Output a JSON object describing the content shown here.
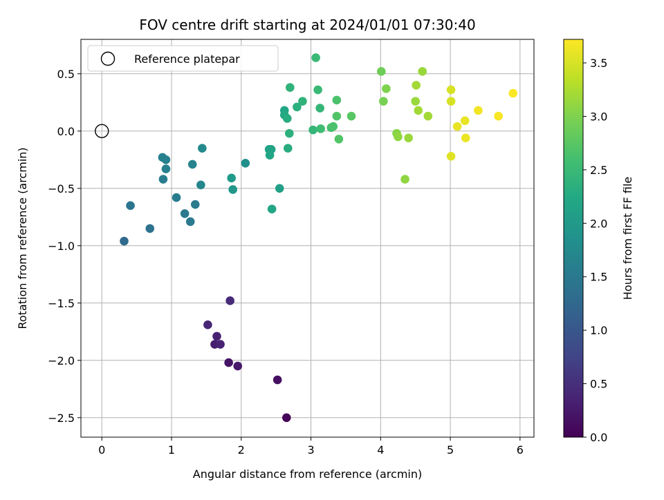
{
  "chart_data": {
    "type": "scatter",
    "title": "FOV centre drift starting at 2024/01/01 07:30:40",
    "xlabel": "Angular distance from reference (arcmin)",
    "ylabel": "Rotation from reference (arcmin)",
    "xlim": [
      -0.3,
      6.2
    ],
    "ylim": [
      -2.67,
      0.8
    ],
    "xticks": [
      0,
      1,
      2,
      3,
      4,
      5,
      6
    ],
    "yticks": [
      -2.5,
      -2.0,
      -1.5,
      -1.0,
      -0.5,
      0.0,
      0.5
    ],
    "grid": true,
    "legend": {
      "placement": "top-left",
      "entries": [
        "Reference platepar"
      ]
    },
    "reference_point": {
      "x": 0,
      "y": 0,
      "label": "Reference platepar"
    },
    "colorbar": {
      "label": "Hours from first FF file",
      "colormap": "viridis",
      "range": [
        0,
        3.72
      ],
      "ticks": [
        0.0,
        0.5,
        1.0,
        1.5,
        2.0,
        2.5,
        3.0,
        3.5
      ]
    },
    "points": [
      {
        "x": 2.65,
        "y": -2.5,
        "c": 0.05
      },
      {
        "x": 2.52,
        "y": -2.17,
        "c": 0.15
      },
      {
        "x": 1.82,
        "y": -2.02,
        "c": 0.2
      },
      {
        "x": 1.95,
        "y": -2.05,
        "c": 0.25
      },
      {
        "x": 1.62,
        "y": -1.86,
        "c": 0.3
      },
      {
        "x": 1.7,
        "y": -1.86,
        "c": 0.35
      },
      {
        "x": 1.65,
        "y": -1.79,
        "c": 0.35
      },
      {
        "x": 1.52,
        "y": -1.69,
        "c": 0.4
      },
      {
        "x": 1.84,
        "y": -1.48,
        "c": 0.45
      },
      {
        "x": 0.32,
        "y": -0.96,
        "c": 1.3
      },
      {
        "x": 0.69,
        "y": -0.85,
        "c": 1.4
      },
      {
        "x": 0.41,
        "y": -0.65,
        "c": 1.45
      },
      {
        "x": 1.27,
        "y": -0.79,
        "c": 1.5
      },
      {
        "x": 1.19,
        "y": -0.72,
        "c": 1.5
      },
      {
        "x": 1.34,
        "y": -0.64,
        "c": 1.55
      },
      {
        "x": 1.07,
        "y": -0.58,
        "c": 1.55
      },
      {
        "x": 0.88,
        "y": -0.42,
        "c": 1.55
      },
      {
        "x": 0.92,
        "y": -0.33,
        "c": 1.6
      },
      {
        "x": 0.87,
        "y": -0.23,
        "c": 1.6
      },
      {
        "x": 0.92,
        "y": -0.25,
        "c": 1.6
      },
      {
        "x": 1.3,
        "y": -0.29,
        "c": 1.65
      },
      {
        "x": 1.42,
        "y": -0.47,
        "c": 1.7
      },
      {
        "x": 1.44,
        "y": -0.15,
        "c": 1.75
      },
      {
        "x": 2.06,
        "y": -0.28,
        "c": 1.85
      },
      {
        "x": 1.88,
        "y": -0.51,
        "c": 1.95
      },
      {
        "x": 1.86,
        "y": -0.41,
        "c": 2.0
      },
      {
        "x": 2.55,
        "y": -0.5,
        "c": 2.1
      },
      {
        "x": 2.44,
        "y": -0.68,
        "c": 2.2
      },
      {
        "x": 2.4,
        "y": -0.16,
        "c": 2.15
      },
      {
        "x": 2.43,
        "y": -0.16,
        "c": 2.15
      },
      {
        "x": 2.41,
        "y": -0.21,
        "c": 2.2
      },
      {
        "x": 2.67,
        "y": -0.15,
        "c": 2.3
      },
      {
        "x": 2.62,
        "y": 0.18,
        "c": 2.2
      },
      {
        "x": 2.62,
        "y": 0.14,
        "c": 2.25
      },
      {
        "x": 2.66,
        "y": 0.11,
        "c": 2.3
      },
      {
        "x": 2.69,
        "y": -0.02,
        "c": 2.35
      },
      {
        "x": 2.8,
        "y": 0.21,
        "c": 2.35
      },
      {
        "x": 2.88,
        "y": 0.26,
        "c": 2.4
      },
      {
        "x": 2.7,
        "y": 0.38,
        "c": 2.4
      },
      {
        "x": 3.03,
        "y": 0.01,
        "c": 2.45
      },
      {
        "x": 3.13,
        "y": 0.2,
        "c": 2.45
      },
      {
        "x": 3.1,
        "y": 0.36,
        "c": 2.5
      },
      {
        "x": 3.07,
        "y": 0.64,
        "c": 2.5
      },
      {
        "x": 3.14,
        "y": 0.02,
        "c": 2.55
      },
      {
        "x": 3.29,
        "y": 0.03,
        "c": 2.6
      },
      {
        "x": 3.32,
        "y": 0.04,
        "c": 2.65
      },
      {
        "x": 3.37,
        "y": 0.27,
        "c": 2.65
      },
      {
        "x": 3.37,
        "y": 0.13,
        "c": 2.7
      },
      {
        "x": 3.4,
        "y": -0.07,
        "c": 2.7
      },
      {
        "x": 3.58,
        "y": 0.13,
        "c": 2.75
      },
      {
        "x": 4.01,
        "y": 0.52,
        "c": 2.9
      },
      {
        "x": 4.04,
        "y": 0.26,
        "c": 2.95
      },
      {
        "x": 4.08,
        "y": 0.37,
        "c": 3.0
      },
      {
        "x": 4.23,
        "y": -0.02,
        "c": 3.05
      },
      {
        "x": 4.25,
        "y": -0.05,
        "c": 3.1
      },
      {
        "x": 4.35,
        "y": -0.42,
        "c": 3.1
      },
      {
        "x": 4.4,
        "y": -0.06,
        "c": 3.15
      },
      {
        "x": 4.5,
        "y": 0.26,
        "c": 3.15
      },
      {
        "x": 4.51,
        "y": 0.4,
        "c": 3.2
      },
      {
        "x": 4.54,
        "y": 0.18,
        "c": 3.2
      },
      {
        "x": 4.6,
        "y": 0.52,
        "c": 3.15
      },
      {
        "x": 4.68,
        "y": 0.13,
        "c": 3.2
      },
      {
        "x": 5.01,
        "y": 0.36,
        "c": 3.5
      },
      {
        "x": 5.01,
        "y": 0.26,
        "c": 3.5
      },
      {
        "x": 5.01,
        "y": -0.22,
        "c": 3.55
      },
      {
        "x": 5.1,
        "y": 0.04,
        "c": 3.6
      },
      {
        "x": 5.21,
        "y": 0.09,
        "c": 3.6
      },
      {
        "x": 5.22,
        "y": -0.06,
        "c": 3.62
      },
      {
        "x": 5.4,
        "y": 0.18,
        "c": 3.65
      },
      {
        "x": 5.69,
        "y": 0.13,
        "c": 3.68
      },
      {
        "x": 5.9,
        "y": 0.33,
        "c": 3.7
      }
    ]
  }
}
